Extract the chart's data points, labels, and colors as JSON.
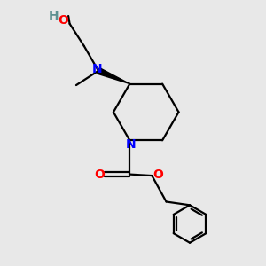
{
  "bg_color": "#e8e8e8",
  "bond_color": "#000000",
  "N_color": "#0000ff",
  "O_color": "#ff0000",
  "H_color": "#5f9090",
  "line_width": 1.6,
  "fig_size": [
    3.0,
    3.0
  ],
  "dpi": 100,
  "xlim": [
    0,
    10
  ],
  "ylim": [
    0,
    10
  ]
}
